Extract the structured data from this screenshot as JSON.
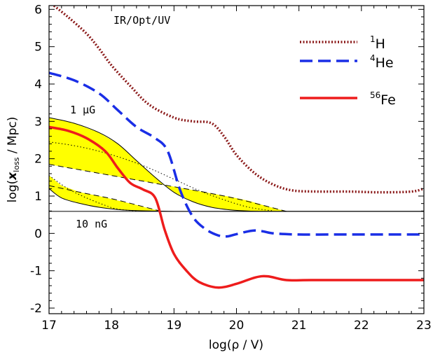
{
  "chart_data": {
    "type": "line",
    "xlabel": "log(ρ / V)",
    "ylabel": "log(x_loss / Mpc)",
    "ylabel_parts": {
      "prefix": "log(",
      "var": "x",
      "sub": "loss",
      "suffix": " / Mpc)"
    },
    "xlim": [
      17,
      23
    ],
    "ylim": [
      -2.15,
      6.1
    ],
    "xticks": [
      17,
      18,
      19,
      20,
      21,
      22,
      23
    ],
    "yticks": [
      -2,
      -1,
      0,
      1,
      2,
      3,
      4,
      5,
      6
    ],
    "grid": false,
    "legend_position": "top-right",
    "annotations": {
      "band": "IR/Opt/UV",
      "top_field": "1 μG",
      "bottom_field": "10 nG"
    },
    "series": [
      {
        "name": "1H",
        "name_sup": "1",
        "name_base": "H",
        "color": "#8b1a1a",
        "style": "dotted",
        "x": [
          17.0,
          17.3,
          17.6,
          17.8,
          18.0,
          18.3,
          18.6,
          19.0,
          19.3,
          19.6,
          19.8,
          20.0,
          20.3,
          20.6,
          20.9,
          21.3,
          21.8,
          22.3,
          22.8,
          23.0
        ],
        "y": [
          6.2,
          5.8,
          5.35,
          4.95,
          4.5,
          3.95,
          3.45,
          3.1,
          3.0,
          2.95,
          2.6,
          2.1,
          1.6,
          1.3,
          1.15,
          1.12,
          1.12,
          1.1,
          1.12,
          1.2
        ]
      },
      {
        "name": "4He",
        "name_sup": "4",
        "name_base": "He",
        "color": "#1a2ee6",
        "style": "dashed",
        "x": [
          17.0,
          17.4,
          17.8,
          18.1,
          18.4,
          18.7,
          18.9,
          19.1,
          19.3,
          19.5,
          19.7,
          19.85,
          20.0,
          20.3,
          20.6,
          21.0,
          21.5,
          22.0,
          22.5,
          23.0
        ],
        "y": [
          4.3,
          4.1,
          3.75,
          3.3,
          2.85,
          2.55,
          2.2,
          1.15,
          0.45,
          0.12,
          -0.05,
          -0.08,
          -0.02,
          0.08,
          0.0,
          -0.03,
          -0.03,
          -0.03,
          -0.03,
          -0.03
        ]
      },
      {
        "name": "56Fe",
        "name_sup": "56",
        "name_base": "Fe",
        "color": "#ee1c1c",
        "style": "solid",
        "x": [
          17.0,
          17.3,
          17.6,
          17.9,
          18.1,
          18.3,
          18.5,
          18.7,
          18.85,
          19.0,
          19.2,
          19.4,
          19.7,
          20.0,
          20.3,
          20.5,
          20.8,
          21.2,
          22.0,
          23.0
        ],
        "y": [
          2.85,
          2.75,
          2.55,
          2.2,
          1.75,
          1.35,
          1.18,
          0.95,
          0.1,
          -0.55,
          -1.0,
          -1.3,
          -1.45,
          -1.35,
          -1.18,
          -1.15,
          -1.25,
          -1.25,
          -1.25,
          -1.25
        ]
      },
      {
        "role": "band-upper-solid",
        "color": "#000000",
        "style": "solid-thin",
        "x": [
          17.0,
          17.4,
          17.8,
          18.1,
          18.4,
          18.7,
          19.0,
          19.3,
          19.6,
          19.9,
          20.2,
          20.6,
          21.0,
          22.0,
          23.0
        ],
        "y": [
          3.1,
          2.95,
          2.7,
          2.4,
          1.95,
          1.5,
          1.1,
          0.85,
          0.7,
          0.63,
          0.6,
          0.59,
          0.59,
          0.59,
          0.59
        ]
      },
      {
        "role": "band-lower-solid",
        "color": "#000000",
        "style": "solid-thin",
        "x": [
          17.0,
          17.2,
          17.5,
          17.8,
          18.1,
          18.4,
          18.7,
          19.0,
          19.5,
          20.0,
          21.0,
          22.0,
          23.0
        ],
        "y": [
          1.2,
          0.95,
          0.8,
          0.7,
          0.64,
          0.61,
          0.6,
          0.59,
          0.59,
          0.59,
          0.59,
          0.59,
          0.59
        ]
      },
      {
        "role": "band-upper-dashed",
        "color": "#000000",
        "style": "dashed-thin",
        "x": [
          17.0,
          17.5,
          18.0,
          18.5,
          19.0,
          19.5,
          20.0,
          20.5,
          20.8
        ],
        "y": [
          1.85,
          1.7,
          1.55,
          1.4,
          1.25,
          1.1,
          0.93,
          0.72,
          0.59
        ]
      },
      {
        "role": "band-lower-dashed",
        "color": "#000000",
        "style": "dashed-thin",
        "x": [
          17.0,
          17.5,
          18.0,
          18.5,
          18.8
        ],
        "y": [
          1.28,
          1.1,
          0.93,
          0.72,
          0.59
        ]
      },
      {
        "role": "band-upper-dotted",
        "color": "#000000",
        "style": "dotted-thin",
        "x": [
          17.0,
          17.4,
          17.8,
          18.2,
          18.6,
          19.0,
          19.4,
          19.8,
          20.2,
          20.6
        ],
        "y": [
          2.45,
          2.35,
          2.2,
          2.0,
          1.75,
          1.45,
          1.15,
          0.9,
          0.7,
          0.6
        ]
      },
      {
        "role": "band-lower-dotted",
        "color": "#000000",
        "style": "dotted-thin",
        "x": [
          17.0,
          17.3,
          17.6,
          17.9,
          18.1,
          18.4
        ],
        "y": [
          1.55,
          1.2,
          0.95,
          0.75,
          0.65,
          0.6
        ]
      }
    ],
    "bands": [
      {
        "role": "upper-band-fill",
        "color": "#ffff00",
        "x": [
          17.0,
          17.4,
          17.8,
          18.1,
          18.4,
          18.7,
          19.0,
          19.3,
          19.6,
          19.9,
          20.2,
          20.5,
          20.8
        ],
        "y_top": [
          3.1,
          2.95,
          2.7,
          2.4,
          1.95,
          1.5,
          1.1,
          0.85,
          0.7,
          0.63,
          0.6,
          0.59,
          0.59
        ],
        "y_bottom": [
          1.85,
          1.73,
          1.61,
          1.52,
          1.43,
          1.34,
          1.25,
          1.16,
          1.07,
          0.98,
          0.87,
          0.72,
          0.59
        ]
      },
      {
        "role": "lower-band-fill",
        "color": "#ffff00",
        "x": [
          17.0,
          17.2,
          17.5,
          17.8,
          18.1,
          18.4,
          18.6,
          18.8
        ],
        "y_top": [
          1.55,
          1.28,
          1.1,
          1.0,
          0.88,
          0.76,
          0.67,
          0.59
        ],
        "y_bottom": [
          1.2,
          0.95,
          0.8,
          0.7,
          0.64,
          0.61,
          0.6,
          0.59
        ]
      }
    ]
  }
}
